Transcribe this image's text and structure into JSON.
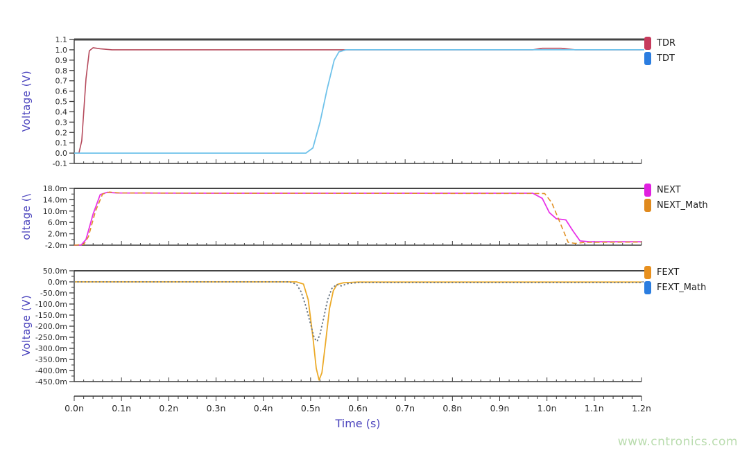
{
  "watermark": "www.cntronics.com",
  "colors": {
    "axis_label": "#4a43bd",
    "tick_text": "#2a2a2a",
    "axis_line": "#3a3a3a",
    "plot_top_border": "#444444",
    "watermark": "#b9dcae",
    "fext_math_zero_line": "#8a8f96"
  },
  "xaxis": {
    "label": "Time (s)",
    "range": [
      0,
      1.2
    ],
    "tick_values": [
      0,
      0.1,
      0.2,
      0.3,
      0.4,
      0.5,
      0.6,
      0.7,
      0.8,
      0.9,
      1.0,
      1.1,
      1.2
    ],
    "tick_labels": [
      "0.0n",
      "0.1n",
      "0.2n",
      "0.3n",
      "0.4n",
      "0.5n",
      "0.6n",
      "0.7n",
      "0.8n",
      "0.9n",
      "1.0n",
      "1.1n",
      "1.2n"
    ],
    "minor_step": 0.02
  },
  "chart_data": [
    {
      "type": "line",
      "ylabel": "Voltage (V)",
      "ylim": [
        -0.1,
        1.1
      ],
      "y_tick_values": [
        1.1,
        1.0,
        0.9,
        0.8,
        0.7,
        0.6,
        0.5,
        0.4,
        0.3,
        0.2,
        0.1,
        0.0,
        -0.1
      ],
      "y_tick_labels": [
        "1.1",
        "1.0",
        "0.9",
        "0.8",
        "0.7",
        "0.6",
        "0.5",
        "0.4",
        "0.3",
        "0.2",
        "0.1",
        "0.0",
        "-0.1"
      ],
      "y_minor_step": null,
      "legend_position": "right",
      "grid": false,
      "series": [
        {
          "name": "TDR",
          "color": "#b5495b",
          "swatch": "#c63b5c",
          "style": "solid",
          "width": 1.6,
          "points": [
            [
              0,
              0
            ],
            [
              0.01,
              0
            ],
            [
              0.016,
              0.12
            ],
            [
              0.025,
              0.72
            ],
            [
              0.032,
              0.99
            ],
            [
              0.04,
              1.02
            ],
            [
              0.055,
              1.01
            ],
            [
              0.08,
              1.0
            ],
            [
              0.9,
              1.0
            ],
            [
              0.97,
              1.0
            ],
            [
              0.99,
              1.015
            ],
            [
              1.03,
              1.015
            ],
            [
              1.06,
              1.0
            ],
            [
              1.2,
              1.0
            ]
          ]
        },
        {
          "name": "TDT",
          "color": "#6fc2ea",
          "swatch": "#2b7de0",
          "style": "solid",
          "width": 1.8,
          "points": [
            [
              0,
              0
            ],
            [
              0.49,
              0
            ],
            [
              0.505,
              0.05
            ],
            [
              0.52,
              0.3
            ],
            [
              0.535,
              0.62
            ],
            [
              0.55,
              0.9
            ],
            [
              0.56,
              0.98
            ],
            [
              0.575,
              1.0
            ],
            [
              1.2,
              1.0
            ]
          ]
        }
      ]
    },
    {
      "type": "line",
      "ylabel": "oltage (\\",
      "ylim": [
        -2,
        18
      ],
      "y_tick_values": [
        18,
        14,
        10,
        6,
        2,
        -2
      ],
      "y_tick_labels": [
        "18.0m",
        "14.0m",
        "10.0m",
        "6.0m",
        "2.0m",
        "-2.0m"
      ],
      "y_minor_step": 2,
      "legend_position": "right",
      "grid": false,
      "series": [
        {
          "name": "NEXT",
          "color": "#e832e8",
          "swatch": "#e020e0",
          "style": "solid",
          "width": 1.8,
          "points": [
            [
              0,
              -2
            ],
            [
              0.015,
              -1.9
            ],
            [
              0.025,
              0
            ],
            [
              0.04,
              9
            ],
            [
              0.055,
              15.8
            ],
            [
              0.07,
              16.6
            ],
            [
              0.09,
              16.4
            ],
            [
              0.3,
              16.3
            ],
            [
              0.97,
              16.3
            ],
            [
              0.99,
              14.5
            ],
            [
              1.005,
              9.5
            ],
            [
              1.02,
              7.3
            ],
            [
              1.04,
              6.9
            ],
            [
              1.055,
              3
            ],
            [
              1.07,
              -0.5
            ],
            [
              1.09,
              -0.8
            ],
            [
              1.2,
              -0.8
            ]
          ]
        },
        {
          "name": "NEXT_Math",
          "color": "#e09025",
          "swatch": "#e08a1e",
          "style": "dashed",
          "width": 1.6,
          "points": [
            [
              0,
              -2
            ],
            [
              0.02,
              -1.8
            ],
            [
              0.03,
              1
            ],
            [
              0.045,
              10
            ],
            [
              0.06,
              16
            ],
            [
              0.075,
              16.7
            ],
            [
              0.095,
              16.4
            ],
            [
              0.3,
              16.3
            ],
            [
              0.995,
              16.2
            ],
            [
              1.01,
              13
            ],
            [
              1.03,
              5
            ],
            [
              1.045,
              -1
            ],
            [
              1.06,
              -1.4
            ],
            [
              1.08,
              -1
            ],
            [
              1.2,
              -0.9
            ]
          ]
        }
      ]
    },
    {
      "type": "line",
      "ylabel": "Voltage (V)",
      "ylim": [
        -450,
        50
      ],
      "y_tick_values": [
        50,
        0,
        -50,
        -100,
        -150,
        -200,
        -250,
        -300,
        -350,
        -400,
        -450
      ],
      "y_tick_labels": [
        "50.0m",
        "0.0m",
        "-50.0m",
        "-100.0m",
        "-150.0m",
        "-200.0m",
        "-250.0m",
        "-300.0m",
        "-350.0m",
        "-400.0m",
        "-450.0m"
      ],
      "y_minor_step": 25,
      "legend_position": "right",
      "grid": false,
      "series": [
        {
          "name": "FEXT",
          "color": "#ecaa28",
          "swatch": "#e8901e",
          "style": "solid",
          "width": 1.8,
          "points": [
            [
              0,
              0
            ],
            [
              0.47,
              0
            ],
            [
              0.485,
              -10
            ],
            [
              0.495,
              -80
            ],
            [
              0.505,
              -250
            ],
            [
              0.512,
              -390
            ],
            [
              0.518,
              -443
            ],
            [
              0.524,
              -410
            ],
            [
              0.532,
              -270
            ],
            [
              0.54,
              -120
            ],
            [
              0.548,
              -40
            ],
            [
              0.556,
              -12
            ],
            [
              0.57,
              -4
            ],
            [
              0.6,
              -1
            ],
            [
              1.2,
              -1
            ]
          ]
        },
        {
          "name": "FEXT_Math",
          "color": "#6b7885",
          "swatch": "#2b7de0",
          "style": "dotted",
          "width": 2,
          "points": [
            [
              0,
              0
            ],
            [
              0.455,
              0
            ],
            [
              0.47,
              -10
            ],
            [
              0.48,
              -45
            ],
            [
              0.49,
              -110
            ],
            [
              0.5,
              -190
            ],
            [
              0.508,
              -255
            ],
            [
              0.514,
              -268
            ],
            [
              0.52,
              -235
            ],
            [
              0.528,
              -160
            ],
            [
              0.536,
              -80
            ],
            [
              0.545,
              -30
            ],
            [
              0.555,
              -12
            ],
            [
              0.565,
              -18
            ],
            [
              0.578,
              -8
            ],
            [
              0.6,
              -3
            ],
            [
              1.2,
              -3
            ]
          ]
        }
      ]
    }
  ]
}
